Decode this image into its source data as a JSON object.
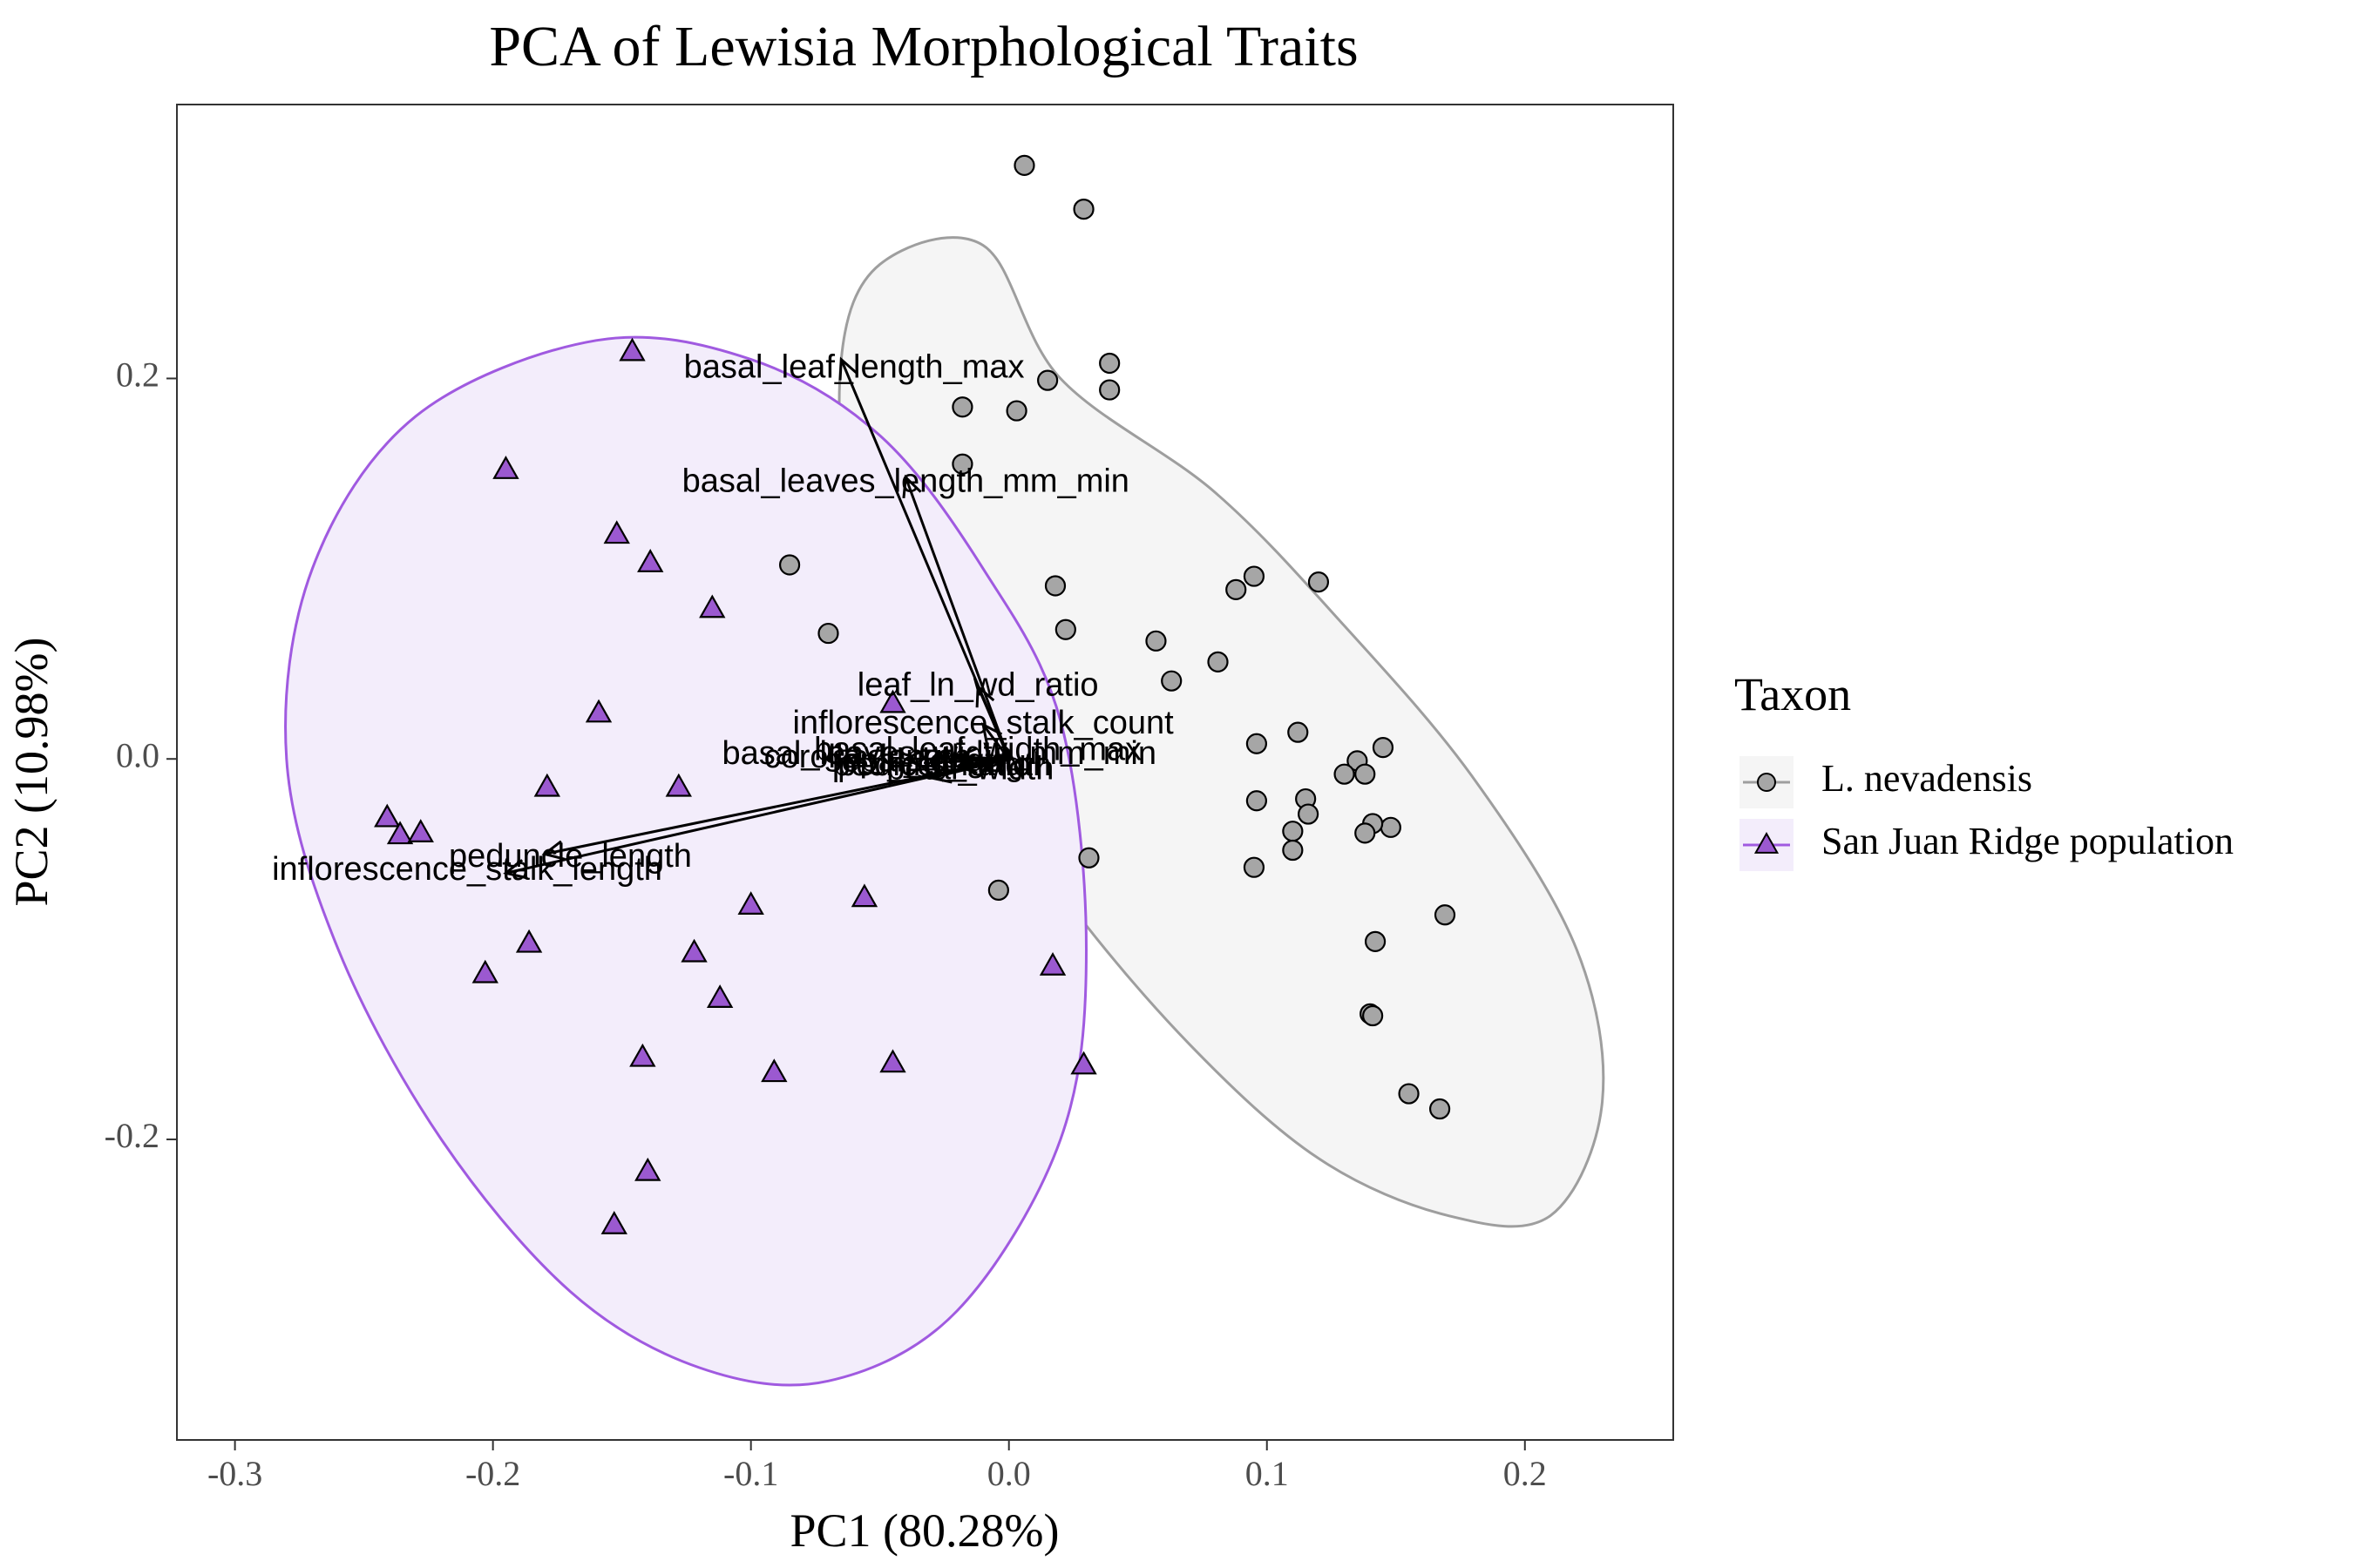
{
  "chart_data": {
    "type": "scatter",
    "title": "PCA of Lewisia Morphological Traits",
    "xlabel": "PC1 (80.28%)",
    "ylabel": "PC2 (10.98%)",
    "xlim": [
      -0.3225,
      0.2575
    ],
    "ylim": [
      -0.358,
      0.344
    ],
    "x_ticks": [
      -0.3,
      -0.2,
      -0.1,
      0.0,
      0.1,
      0.2
    ],
    "x_tick_labels": [
      "-0.3",
      "-0.2",
      "-0.1",
      "0.0",
      "0.1",
      "0.2"
    ],
    "y_ticks": [
      -0.2,
      0.0,
      0.2
    ],
    "y_tick_labels": [
      "-0.2",
      "0.0",
      "0.2"
    ],
    "grid": false,
    "legend": {
      "title": "Taxon",
      "placement": "right",
      "entries": [
        "L. nevadensis",
        "San Juan Ridge population"
      ]
    },
    "series": [
      {
        "name": "L. nevadensis",
        "marker": "circle",
        "fill": "#a6a6a6",
        "ellipse_stroke": "#9e9e9e",
        "ellipse_fill": "#f5f5f5",
        "points": [
          [
            0.006,
            0.312
          ],
          [
            0.029,
            0.289
          ],
          [
            0.039,
            0.208
          ],
          [
            0.015,
            0.199
          ],
          [
            0.039,
            0.194
          ],
          [
            -0.018,
            0.185
          ],
          [
            0.003,
            0.183
          ],
          [
            -0.018,
            0.155
          ],
          [
            -0.085,
            0.102
          ],
          [
            0.095,
            0.096
          ],
          [
            0.12,
            0.093
          ],
          [
            0.018,
            0.091
          ],
          [
            0.088,
            0.089
          ],
          [
            -0.07,
            0.066
          ],
          [
            0.022,
            0.068
          ],
          [
            0.057,
            0.062
          ],
          [
            0.081,
            0.051
          ],
          [
            0.063,
            0.041
          ],
          [
            0.112,
            0.014
          ],
          [
            0.096,
            0.008
          ],
          [
            0.145,
            0.006
          ],
          [
            0.135,
            -0.001
          ],
          [
            0.13,
            -0.008
          ],
          [
            0.138,
            -0.008
          ],
          [
            0.115,
            -0.021
          ],
          [
            0.096,
            -0.022
          ],
          [
            0.116,
            -0.029
          ],
          [
            0.148,
            -0.036
          ],
          [
            0.141,
            -0.034
          ],
          [
            0.138,
            -0.039
          ],
          [
            0.11,
            -0.038
          ],
          [
            0.11,
            -0.048
          ],
          [
            0.095,
            -0.057
          ],
          [
            0.031,
            -0.052
          ],
          [
            -0.004,
            -0.069
          ],
          [
            0.169,
            -0.082
          ],
          [
            0.142,
            -0.096
          ],
          [
            0.14,
            -0.134
          ],
          [
            0.141,
            -0.135
          ],
          [
            0.155,
            -0.176
          ],
          [
            0.167,
            -0.184
          ]
        ],
        "ellipse": [
          [
            -0.01,
            0.27
          ],
          [
            0.02,
            0.2
          ],
          [
            0.08,
            0.14
          ],
          [
            0.13,
            0.07
          ],
          [
            0.18,
            -0.01
          ],
          [
            0.22,
            -0.1
          ],
          [
            0.23,
            -0.18
          ],
          [
            0.21,
            -0.24
          ],
          [
            0.17,
            -0.24
          ],
          [
            0.12,
            -0.21
          ],
          [
            0.07,
            -0.15
          ],
          [
            0.02,
            -0.07
          ],
          [
            -0.03,
            0.03
          ],
          [
            -0.06,
            0.12
          ],
          [
            -0.065,
            0.21
          ],
          [
            -0.05,
            0.26
          ]
        ]
      },
      {
        "name": "San Juan Ridge population",
        "marker": "triangle",
        "fill": "#9b59d0",
        "ellipse_stroke": "#a05ae0",
        "ellipse_fill": "#f3edfb",
        "points": [
          [
            -0.146,
            0.214
          ],
          [
            -0.195,
            0.152
          ],
          [
            -0.152,
            0.118
          ],
          [
            -0.139,
            0.103
          ],
          [
            -0.115,
            0.079
          ],
          [
            -0.159,
            0.024
          ],
          [
            -0.045,
            0.029
          ],
          [
            -0.179,
            -0.015
          ],
          [
            -0.128,
            -0.015
          ],
          [
            -0.241,
            -0.031
          ],
          [
            -0.236,
            -0.04
          ],
          [
            -0.228,
            -0.039
          ],
          [
            -0.056,
            -0.073
          ],
          [
            -0.1,
            -0.077
          ],
          [
            -0.186,
            -0.097
          ],
          [
            -0.203,
            -0.113
          ],
          [
            -0.122,
            -0.102
          ],
          [
            -0.112,
            -0.126
          ],
          [
            0.017,
            -0.109
          ],
          [
            -0.142,
            -0.157
          ],
          [
            -0.091,
            -0.165
          ],
          [
            -0.045,
            -0.16
          ],
          [
            0.029,
            -0.161
          ],
          [
            -0.14,
            -0.217
          ],
          [
            -0.153,
            -0.245
          ]
        ],
        "ellipse": [
          [
            -0.16,
            0.22
          ],
          [
            -0.1,
            0.21
          ],
          [
            -0.05,
            0.17
          ],
          [
            -0.01,
            0.1
          ],
          [
            0.02,
            0.02
          ],
          [
            0.03,
            -0.1
          ],
          [
            0.02,
            -0.2
          ],
          [
            -0.02,
            -0.29
          ],
          [
            -0.07,
            -0.327
          ],
          [
            -0.12,
            -0.32
          ],
          [
            -0.17,
            -0.28
          ],
          [
            -0.22,
            -0.2
          ],
          [
            -0.26,
            -0.1
          ],
          [
            -0.28,
            0.0
          ],
          [
            -0.27,
            0.1
          ],
          [
            -0.23,
            0.18
          ]
        ]
      }
    ],
    "loadings": [
      {
        "label": "basal_leaf_length_max",
        "x": -0.065,
        "y": 0.21,
        "label_x": -0.06,
        "label_y": 0.205
      },
      {
        "label": "basal_leaves_length_mm_min",
        "x": -0.04,
        "y": 0.148,
        "label_x": -0.04,
        "label_y": 0.145
      },
      {
        "label": "leaf_ln_wd_ratio",
        "x": -0.012,
        "y": 0.038,
        "label_x": -0.012,
        "label_y": 0.038
      },
      {
        "label": "inflorescence_stalk_count",
        "x": -0.01,
        "y": 0.018,
        "label_x": -0.01,
        "label_y": 0.018
      },
      {
        "label": "basal_leaf_width_max",
        "x": 0.0,
        "y": 0.004,
        "label_x": -0.012,
        "label_y": 0.004
      },
      {
        "label": "basal_leaves_width_mm_min",
        "x": -0.02,
        "y": 0.001,
        "label_x": -0.027,
        "label_y": 0.002
      },
      {
        "label": "corolla_length",
        "x": -0.04,
        "y": 0.0,
        "label_x": -0.055,
        "label_y": 0.0
      },
      {
        "label": "sepal_length",
        "x": -0.03,
        "y": -0.002,
        "label_x": -0.035,
        "label_y": -0.002
      },
      {
        "label": "pedicel_length",
        "x": -0.02,
        "y": -0.004,
        "label_x": -0.025,
        "label_y": -0.004
      },
      {
        "label": "petal_width",
        "x": -0.01,
        "y": -0.006,
        "label_x": -0.015,
        "label_y": -0.006
      },
      {
        "label": "ped_infl_ratio",
        "x": -0.03,
        "y": -0.01,
        "label_x": -0.03,
        "label_y": -0.004
      },
      {
        "label": "peduncle_length",
        "x": -0.18,
        "y": -0.05,
        "label_x": -0.17,
        "label_y": -0.052
      },
      {
        "label": "inflorescence_stalk_length",
        "x": -0.195,
        "y": -0.06,
        "label_x": -0.21,
        "label_y": -0.059
      }
    ]
  }
}
